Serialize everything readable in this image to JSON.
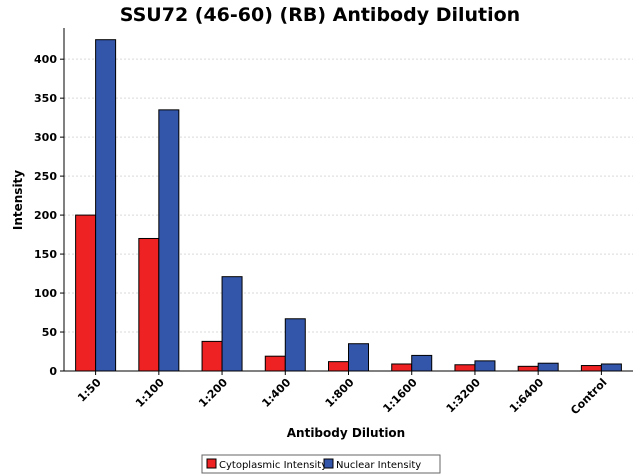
{
  "chart_data": {
    "type": "bar",
    "title": "SSU72 (46-60) (RB) Antibody Dilution",
    "xlabel": "Antibody Dilution",
    "ylabel": "Intensity",
    "categories": [
      "1:50",
      "1:100",
      "1:200",
      "1:400",
      "1:800",
      "1:1600",
      "1:3200",
      "1:6400",
      "Control"
    ],
    "series": [
      {
        "name": "Cytoplasmic Intensity",
        "color": "#ee2222",
        "values": [
          200,
          170,
          38,
          19,
          12,
          9,
          8,
          6,
          7
        ]
      },
      {
        "name": "Nuclear Intensity",
        "color": "#3355aa",
        "values": [
          425,
          335,
          121,
          67,
          35,
          20,
          13,
          10,
          9
        ]
      }
    ],
    "ylim": [
      0,
      440
    ],
    "yticks": [
      0,
      50,
      100,
      150,
      200,
      250,
      300,
      350,
      400
    ],
    "grid": true,
    "legend_position": "bottom"
  }
}
